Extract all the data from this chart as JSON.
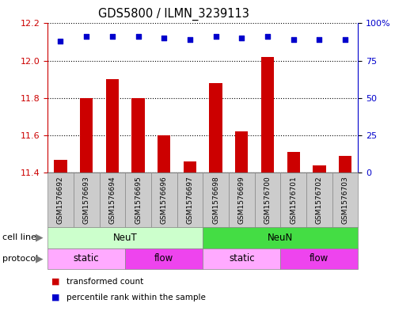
{
  "title": "GDS5800 / ILMN_3239113",
  "samples": [
    "GSM1576692",
    "GSM1576693",
    "GSM1576694",
    "GSM1576695",
    "GSM1576696",
    "GSM1576697",
    "GSM1576698",
    "GSM1576699",
    "GSM1576700",
    "GSM1576701",
    "GSM1576702",
    "GSM1576703"
  ],
  "red_values": [
    11.47,
    11.8,
    11.9,
    11.8,
    11.6,
    11.46,
    11.88,
    11.62,
    12.02,
    11.51,
    11.44,
    11.49
  ],
  "blue_values": [
    88,
    91,
    91,
    91,
    90,
    89,
    91,
    90,
    91,
    89,
    89,
    89
  ],
  "ylim_left": [
    11.4,
    12.2
  ],
  "ylim_right": [
    0,
    100
  ],
  "yticks_left": [
    11.4,
    11.6,
    11.8,
    12.0,
    12.2
  ],
  "yticks_right": [
    0,
    25,
    50,
    75,
    100
  ],
  "ytick_labels_right": [
    "0",
    "25",
    "50",
    "75",
    "100%"
  ],
  "cell_line_groups": [
    {
      "label": "NeuT",
      "start": 0,
      "end": 5,
      "color": "#CCFFCC"
    },
    {
      "label": "NeuN",
      "start": 6,
      "end": 11,
      "color": "#44DD44"
    }
  ],
  "protocol_groups": [
    {
      "label": "static",
      "start": 0,
      "end": 2,
      "color": "#FFAAFF"
    },
    {
      "label": "flow",
      "start": 3,
      "end": 5,
      "color": "#EE44EE"
    },
    {
      "label": "static",
      "start": 6,
      "end": 8,
      "color": "#FFAAFF"
    },
    {
      "label": "flow",
      "start": 9,
      "end": 11,
      "color": "#EE44EE"
    }
  ],
  "bar_color": "#CC0000",
  "dot_color": "#0000CC",
  "background_color": "#ffffff",
  "tick_bg_color": "#CCCCCC",
  "grid_color": "#000000",
  "legend_items": [
    {
      "label": "transformed count",
      "color": "#CC0000"
    },
    {
      "label": "percentile rank within the sample",
      "color": "#0000CC"
    }
  ]
}
